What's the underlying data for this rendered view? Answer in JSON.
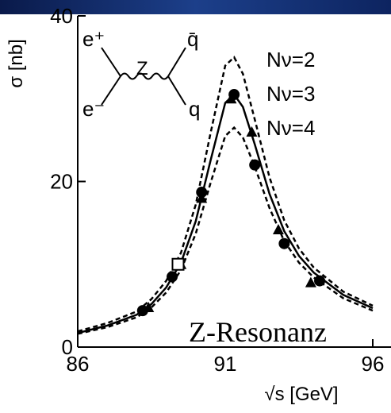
{
  "chart_data": {
    "type": "line",
    "xlabel": "√s   [GeV]",
    "ylabel": "σ  [nb]",
    "xlim": [
      86,
      96
    ],
    "xticks": [
      86,
      91,
      96
    ],
    "ylim": [
      0,
      40
    ],
    "yticks": [
      0,
      20,
      40
    ],
    "x": [
      86,
      87,
      88,
      88.5,
      89,
      89.5,
      90,
      90.5,
      91,
      91.3,
      91.6,
      92,
      92.5,
      93,
      93.5,
      94,
      95,
      96
    ],
    "series": [
      {
        "name": "Nν=2",
        "color": "#000000",
        "style": "dashed",
        "values": [
          1.9,
          2.9,
          4.3,
          5.8,
          8.0,
          11.4,
          17.2,
          25.8,
          34,
          35,
          33,
          27.5,
          20.5,
          15.3,
          11.9,
          9.6,
          6.7,
          5.0
        ]
      },
      {
        "name": "Nν=3",
        "color": "#000000",
        "style": "solid",
        "values": [
          1.7,
          2.6,
          3.9,
          5.2,
          7.2,
          10.2,
          15.2,
          22.5,
          29.5,
          30.5,
          29,
          24.5,
          18.5,
          14,
          11,
          9,
          6.3,
          4.7
        ]
      },
      {
        "name": "Nν=4",
        "color": "#000000",
        "style": "dashed",
        "values": [
          1.6,
          2.4,
          3.6,
          4.8,
          6.6,
          9.3,
          13.7,
          19.8,
          25.5,
          26.5,
          25.3,
          21.8,
          16.8,
          12.8,
          10.2,
          8.4,
          5.9,
          4.4
        ]
      }
    ],
    "points": [
      {
        "marker": "circle",
        "color": "#000000",
        "x": [
          88.2,
          89.2,
          90.2,
          91.3,
          92.0,
          93.0,
          94.2
        ],
        "values": [
          4.4,
          8.5,
          18.7,
          30.5,
          22,
          12.5,
          8
        ]
      },
      {
        "marker": "triangle",
        "color": "#000000",
        "x": [
          88.4,
          89.5,
          90.2,
          91.2,
          91.9,
          92.8,
          93.9
        ],
        "values": [
          4.8,
          10,
          18,
          30,
          26,
          14.2,
          7.8
        ]
      },
      {
        "marker": "square",
        "color": "#000000",
        "x": [
          89.4
        ],
        "values": [
          10
        ]
      }
    ],
    "annotations": {
      "title": "Z-Resonanz",
      "e_plus": "e⁺",
      "e_minus": "e⁻",
      "boson": "Z",
      "antiquark": "q̄",
      "quark": "q"
    }
  }
}
